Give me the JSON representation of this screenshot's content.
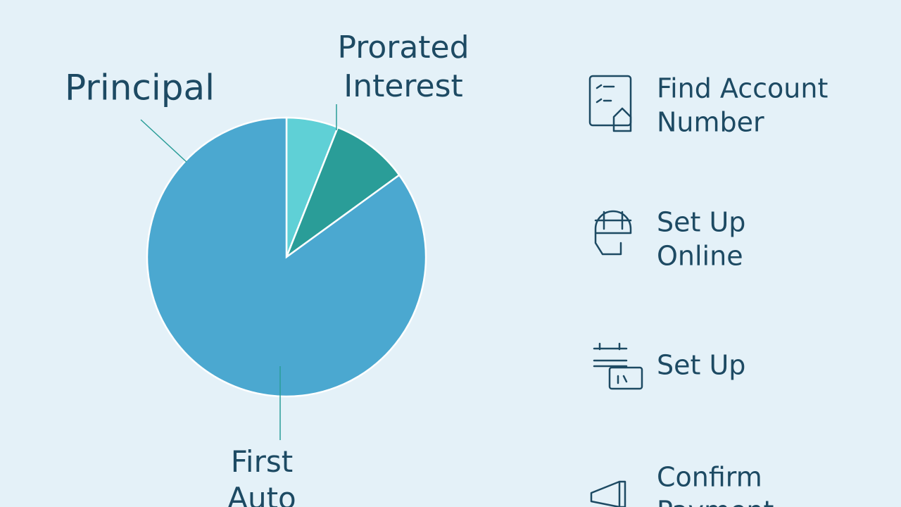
{
  "chart_data": {
    "type": "pie",
    "categories": [
      null,
      "Prorated Interest",
      "Principal"
    ],
    "values": [
      6,
      9,
      85
    ],
    "colors": [
      "#5fd0d6",
      "#2a9d98",
      "#4ba8d0"
    ],
    "annotation": "First Auto"
  },
  "steps": [
    {
      "lines": [
        "Find Account",
        "Number"
      ]
    },
    {
      "lines": [
        "Set Up",
        "Online"
      ]
    },
    {
      "lines": [
        "Set Up"
      ]
    },
    {
      "lines": [
        "Confirm",
        "Payment"
      ]
    }
  ]
}
